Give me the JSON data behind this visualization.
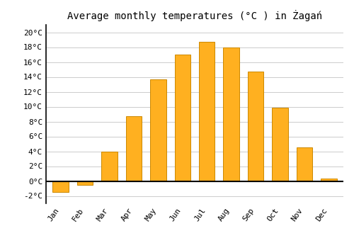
{
  "title": "Average monthly temperatures (°C ) in Żagań",
  "months": [
    "Jan",
    "Feb",
    "Mar",
    "Apr",
    "May",
    "Jun",
    "Jul",
    "Aug",
    "Sep",
    "Oct",
    "Nov",
    "Dec"
  ],
  "values": [
    -1.5,
    -0.5,
    4.0,
    8.7,
    13.7,
    17.0,
    18.7,
    18.0,
    14.7,
    9.9,
    4.5,
    0.3
  ],
  "bar_color": "#FFB020",
  "bar_edge_color": "#CC8800",
  "ylim": [
    -3,
    21
  ],
  "yticks": [
    -2,
    0,
    2,
    4,
    6,
    8,
    10,
    12,
    14,
    16,
    18,
    20
  ],
  "background_color": "#ffffff",
  "grid_color": "#cccccc",
  "title_fontsize": 10,
  "tick_fontsize": 8,
  "bar_width": 0.65
}
